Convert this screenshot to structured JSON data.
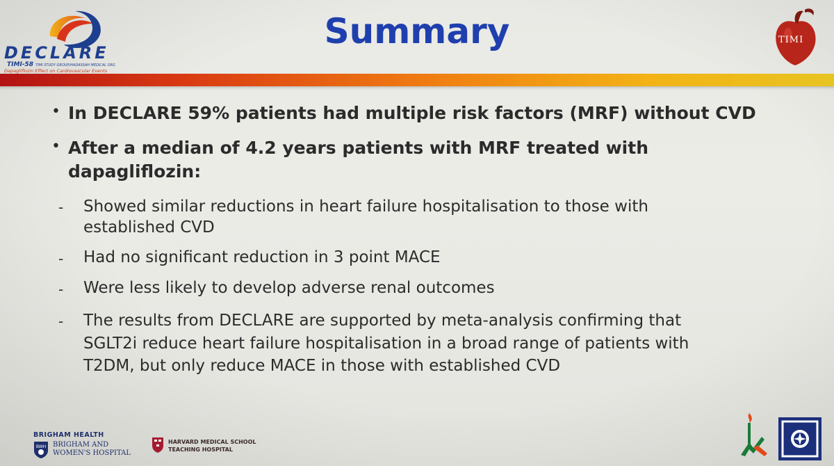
{
  "header": {
    "title": "Summary",
    "declare_logo": {
      "word": "DECLARE",
      "trial": "TIMI-58",
      "trial_small": "TIMI STUDY GROUP/HADASSAH MEDICAL ORG",
      "subtitle": "Dapagliflozin Effect on Cardiovascular Events"
    },
    "timi_logo": {
      "text": "TIMI"
    }
  },
  "body": {
    "bullets": [
      {
        "lines": [
          "In DECLARE 59% patients had multiple risk factors (MRF) without CVD"
        ]
      },
      {
        "lines": [
          "After a median of 4.2 years patients with MRF treated with",
          "dapagliflozin:"
        ]
      }
    ],
    "subpoints": [
      {
        "lines": [
          "Showed similar reductions in heart failure hospitalisation to those with",
          "established CVD"
        ]
      },
      {
        "lines": [
          "Had no significant reduction in 3 point MACE"
        ]
      },
      {
        "lines": [
          "Were less likely to develop adverse renal outcomes"
        ]
      },
      {
        "lines": [
          "The results from DECLARE are supported by meta-analysis confirming that",
          "SGLT2i reduce heart failure hospitalisation in a broad range of patients with",
          "T2DM, but only reduce MACE in those with established CVD"
        ]
      }
    ],
    "bullet_glyph": "•",
    "dash_glyph": "-"
  },
  "footer": {
    "brigham_health": "BRIGHAM HEALTH",
    "bwh_line1": "BRIGHAM AND",
    "bwh_line2": "WOMEN'S HOSPITAL",
    "bwh_shield": "BWH",
    "hms_line1": "HARVARD MEDICAL SCHOOL",
    "hms_line2": "TEACHING HOSPITAL"
  },
  "colors": {
    "title": "#1f3fae",
    "band_start": "#b21212",
    "band_end": "#e8c421",
    "text": "#2b2b2b"
  }
}
